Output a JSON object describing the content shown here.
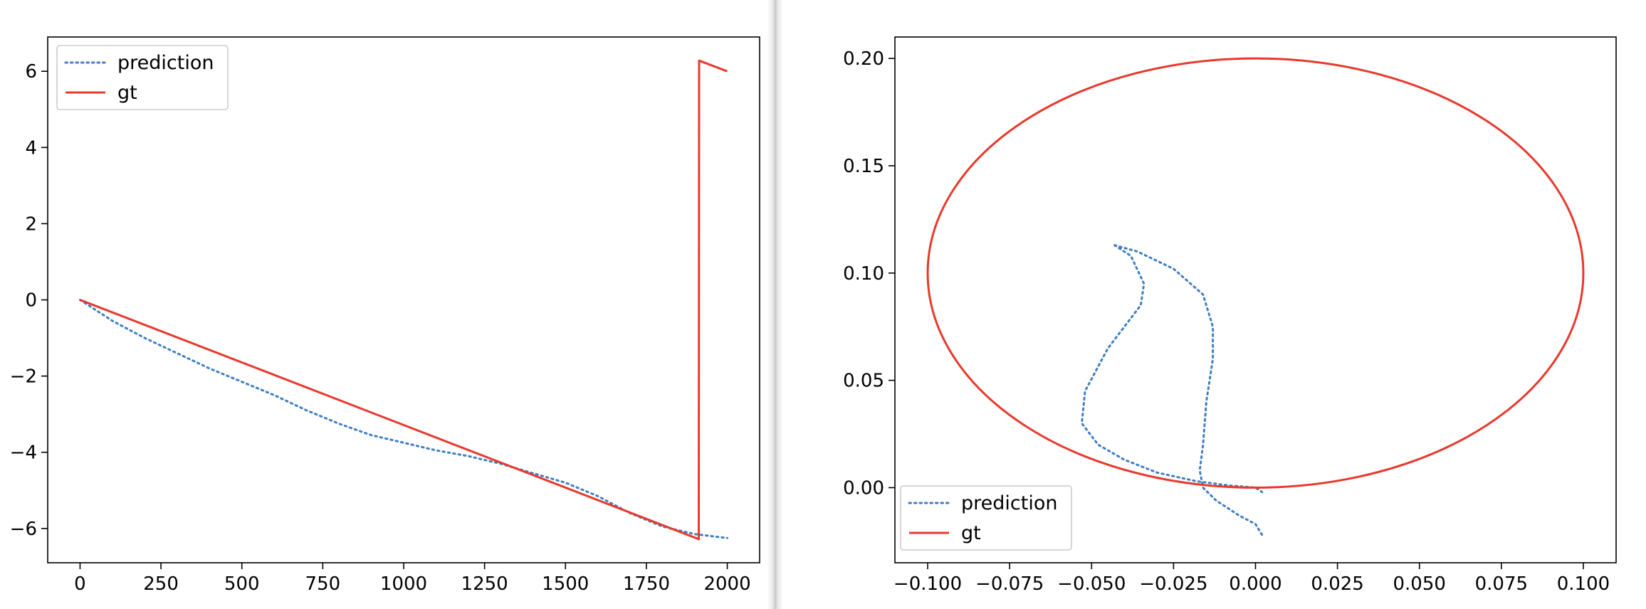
{
  "chart_data": [
    {
      "type": "line",
      "title": "",
      "xlabel": "",
      "ylabel": "",
      "xlim": [
        -100,
        2100
      ],
      "ylim": [
        -6.9,
        6.9
      ],
      "xticks": [
        0,
        250,
        500,
        750,
        1000,
        1250,
        1500,
        1750,
        2000
      ],
      "xtick_labels": [
        "0",
        "250",
        "500",
        "750",
        "1000",
        "1250",
        "1500",
        "1750",
        "2000"
      ],
      "yticks": [
        -6,
        -4,
        -2,
        0,
        2,
        4,
        6
      ],
      "ytick_labels": [
        "−6",
        "−4",
        "−2",
        "0",
        "2",
        "4",
        "6"
      ],
      "grid": false,
      "legend_position": "upper left",
      "series": [
        {
          "name": "prediction",
          "style": "dotted",
          "color": "#3f7fbf",
          "x": [
            0,
            100,
            200,
            300,
            400,
            500,
            600,
            700,
            800,
            850,
            900,
            1000,
            1100,
            1200,
            1300,
            1400,
            1500,
            1600,
            1700,
            1800,
            1900,
            2000
          ],
          "y": [
            0,
            -0.55,
            -1.0,
            -1.4,
            -1.8,
            -2.15,
            -2.5,
            -2.9,
            -3.25,
            -3.4,
            -3.55,
            -3.75,
            -3.95,
            -4.1,
            -4.3,
            -4.55,
            -4.8,
            -5.15,
            -5.6,
            -5.95,
            -6.15,
            -6.25
          ]
        },
        {
          "name": "gt",
          "style": "solid",
          "color": "#e8392c",
          "x": [
            0,
            1912,
            1913,
            2000
          ],
          "y": [
            0.0,
            -6.28,
            6.28,
            6.0
          ]
        }
      ]
    },
    {
      "type": "line",
      "title": "",
      "xlabel": "",
      "ylabel": "",
      "xlim": [
        -0.11,
        0.11
      ],
      "ylim": [
        -0.035,
        0.21
      ],
      "xticks": [
        -0.1,
        -0.075,
        -0.05,
        -0.025,
        0.0,
        0.025,
        0.05,
        0.075,
        0.1
      ],
      "xtick_labels": [
        "−0.100",
        "−0.075",
        "−0.050",
        "−0.025",
        "0.000",
        "0.025",
        "0.050",
        "0.075",
        "0.100"
      ],
      "yticks": [
        0.0,
        0.05,
        0.1,
        0.15,
        0.2
      ],
      "ytick_labels": [
        "0.00",
        "0.05",
        "0.10",
        "0.15",
        "0.20"
      ],
      "grid": false,
      "legend_position": "lower left",
      "series": [
        {
          "name": "prediction",
          "style": "dotted",
          "color": "#3f7fbf",
          "x": [
            -0.043,
            -0.038,
            -0.034,
            -0.035,
            -0.045,
            -0.052,
            -0.053,
            -0.048,
            -0.04,
            -0.03,
            -0.018,
            -0.008,
            0.0,
            0.002,
            "break",
            -0.043,
            -0.036,
            -0.025,
            -0.016,
            -0.013,
            -0.013,
            -0.015,
            -0.016,
            -0.017,
            -0.016,
            -0.012,
            -0.005,
            0.0,
            0.002
          ],
          "y": [
            0.113,
            0.108,
            0.095,
            0.085,
            0.065,
            0.045,
            0.03,
            0.02,
            0.013,
            0.007,
            0.003,
            0.001,
            0.0,
            -0.002,
            "break",
            0.113,
            0.11,
            0.102,
            0.09,
            0.075,
            0.06,
            0.04,
            0.02,
            0.008,
            0.0,
            -0.006,
            -0.013,
            -0.017,
            -0.022
          ]
        },
        {
          "name": "gt",
          "style": "solid",
          "color": "#e8392c",
          "shape": "ellipse",
          "center": [
            0.0,
            0.1
          ],
          "radius_x": 0.1,
          "radius_y": 0.1
        }
      ]
    }
  ]
}
